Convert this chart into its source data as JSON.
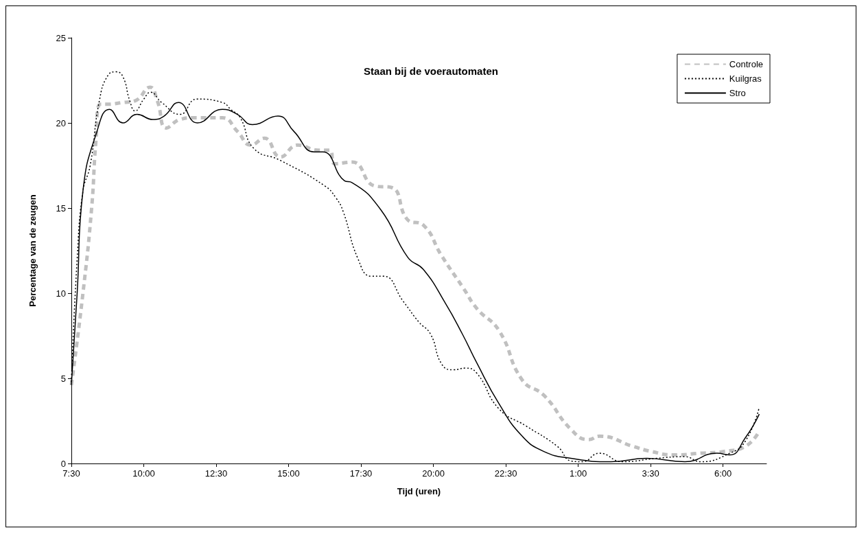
{
  "chart_data": {
    "type": "line",
    "title": "Staan bij de voerautomaten",
    "xlabel": "Tijd (uren)",
    "ylabel": "Percentage van de zeugen",
    "xlim": [
      "2000-01-01T07:30",
      "2000-01-02T07:30"
    ],
    "ylim": [
      0,
      25
    ],
    "xticks": [
      {
        "value": "2000-01-01T07:30",
        "label": "7:30"
      },
      {
        "value": "2000-01-01T10:00",
        "label": "10:00"
      },
      {
        "value": "2000-01-01T12:30",
        "label": "12:30"
      },
      {
        "value": "2000-01-01T15:00",
        "label": "15:00"
      },
      {
        "value": "2000-01-01T17:30",
        "label": "17:30"
      },
      {
        "value": "2000-01-01T20:00",
        "label": "20:00"
      },
      {
        "value": "2000-01-01T22:30",
        "label": "22:30"
      },
      {
        "value": "2000-01-02T01:00",
        "label": "1:00"
      },
      {
        "value": "2000-01-02T03:30",
        "label": "3:30"
      },
      {
        "value": "2000-01-02T06:00",
        "label": "6:00"
      }
    ],
    "yticks": [
      0,
      5,
      10,
      15,
      20,
      25
    ],
    "grid": false,
    "legend": "top right",
    "marker": "none",
    "series": [
      {
        "name": "Controle",
        "color": "#c0c0c0",
        "line_style": "dashed",
        "x": [
          "2000-01-01T07:30",
          "2000-01-01T07:54",
          "2000-01-01T08:12",
          "2000-01-01T08:21",
          "2000-01-01T08:30",
          "2000-01-01T08:46",
          "2000-01-01T09:17",
          "2000-01-01T09:42",
          "2000-01-01T10:13",
          "2000-01-01T10:28",
          "2000-01-01T10:47",
          "2000-01-01T11:15",
          "2000-01-01T11:43",
          "2000-01-01T12:43",
          "2000-01-01T13:14",
          "2000-01-01T13:42",
          "2000-01-01T14:10",
          "2000-01-01T14:43",
          "2000-01-01T15:19",
          "2000-01-01T16:01",
          "2000-01-01T16:25",
          "2000-01-01T16:36",
          "2000-01-01T17:12",
          "2000-01-01T17:58",
          "2000-01-01T18:34",
          "2000-01-01T19:07",
          "2000-01-01T19:39",
          "2000-01-01T20:17",
          "2000-01-01T21:02",
          "2000-01-01T21:30",
          "2000-01-01T22:16",
          "2000-01-01T23:04",
          "2000-01-01T23:49",
          "2000-01-02T00:45",
          "2000-01-02T01:22",
          "2000-01-02T01:44",
          "2000-01-02T02:54",
          "2000-01-02T03:32",
          "2000-01-02T04:18",
          "2000-01-02T05:13",
          "2000-01-02T06:00",
          "2000-01-02T06:46",
          "2000-01-02T07:15"
        ],
        "values": [
          4.6,
          10,
          15,
          19,
          21.1,
          21.1,
          21.2,
          21.3,
          22.1,
          21.3,
          19.7,
          20.2,
          20.3,
          20.3,
          19.5,
          18.7,
          19.1,
          18.0,
          18.7,
          18.4,
          18.4,
          17.6,
          17.7,
          16.3,
          16.2,
          14.3,
          14.0,
          12.2,
          10.3,
          9.1,
          7.8,
          4.9,
          4.0,
          2.0,
          1.4,
          1.6,
          1.0,
          0.7,
          0.5,
          0.6,
          0.7,
          1.0,
          1.9
        ]
      },
      {
        "name": "Kuilgras",
        "color": "#000000",
        "line_style": "dotted",
        "x": [
          "2000-01-01T07:30",
          "2000-01-01T07:42",
          "2000-01-01T07:54",
          "2000-01-01T08:09",
          "2000-01-01T08:28",
          "2000-01-01T08:46",
          "2000-01-01T09:03",
          "2000-01-01T09:17",
          "2000-01-01T09:31",
          "2000-01-01T09:42",
          "2000-01-01T10:00",
          "2000-01-01T10:14",
          "2000-01-01T10:37",
          "2000-01-01T11:15",
          "2000-01-01T11:50",
          "2000-01-01T12:43",
          "2000-01-01T13:00",
          "2000-01-01T13:20",
          "2000-01-01T13:48",
          "2000-01-01T14:43",
          "2000-01-01T16:15",
          "2000-01-01T16:38",
          "2000-01-01T16:53",
          "2000-01-01T17:24",
          "2000-01-01T17:51",
          "2000-01-01T18:16",
          "2000-01-01T18:58",
          "2000-01-01T19:30",
          "2000-01-01T19:54",
          "2000-01-01T20:18",
          "2000-01-01T20:42",
          "2000-01-01T21:06",
          "2000-01-01T21:30",
          "2000-01-01T22:16",
          "2000-01-01T23:12",
          "2000-01-02T00:17",
          "2000-01-02T00:45",
          "2000-01-02T01:08",
          "2000-01-02T01:44",
          "2000-01-02T02:32",
          "2000-01-02T03:42",
          "2000-01-02T04:41",
          "2000-01-02T05:13",
          "2000-01-02T06:14",
          "2000-01-02T06:46",
          "2000-01-02T07:15"
        ],
        "values": [
          4.8,
          12,
          16,
          17.5,
          21.3,
          22.8,
          23.0,
          22.7,
          21.3,
          20.7,
          21.4,
          21.8,
          21.2,
          20.5,
          21.4,
          21.2,
          20.8,
          20.3,
          18.5,
          17.8,
          16.3,
          15.6,
          14.8,
          12.0,
          11.0,
          11.0,
          9.5,
          8.3,
          7.6,
          5.8,
          5.5,
          5.6,
          5.3,
          3.2,
          2.2,
          1.0,
          0.15,
          0.1,
          0.6,
          0.1,
          0.3,
          0.4,
          0.1,
          0.6,
          1.3,
          3.3
        ]
      },
      {
        "name": "Stro",
        "color": "#000000",
        "line_style": "solid",
        "x": [
          "2000-01-01T07:30",
          "2000-01-01T07:42",
          "2000-01-01T07:54",
          "2000-01-01T08:23",
          "2000-01-01T08:49",
          "2000-01-01T09:17",
          "2000-01-01T09:46",
          "2000-01-01T10:19",
          "2000-01-01T10:42",
          "2000-01-01T11:12",
          "2000-01-01T11:51",
          "2000-01-01T12:43",
          "2000-01-01T13:14",
          "2000-01-01T13:45",
          "2000-01-01T14:38",
          "2000-01-01T15:11",
          "2000-01-01T15:53",
          "2000-01-01T16:11",
          "2000-01-01T16:56",
          "2000-01-01T17:11",
          "2000-01-01T18:11",
          "2000-01-01T19:07",
          "2000-01-01T19:39",
          "2000-01-01T20:25",
          "2000-01-01T21:00",
          "2000-01-01T21:30",
          "2000-01-01T22:16",
          "2000-01-01T23:04",
          "2000-01-01T23:49",
          "2000-01-02T00:45",
          "2000-01-02T02:08",
          "2000-01-02T03:22",
          "2000-01-02T04:41",
          "2000-01-02T05:47",
          "2000-01-02T06:14",
          "2000-01-02T06:46",
          "2000-01-02T07:15"
        ],
        "values": [
          4.6,
          10,
          16,
          19.5,
          20.8,
          20.0,
          20.5,
          20.2,
          20.4,
          21.2,
          20.0,
          20.8,
          20.5,
          19.9,
          20.4,
          19.5,
          18.3,
          18.3,
          16.6,
          16.5,
          14.9,
          12.1,
          11.4,
          9.4,
          7.6,
          5.9,
          3.5,
          1.6,
          0.7,
          0.3,
          0.1,
          0.3,
          0.1,
          0.6,
          0.5,
          1.5,
          2.9
        ]
      }
    ]
  }
}
